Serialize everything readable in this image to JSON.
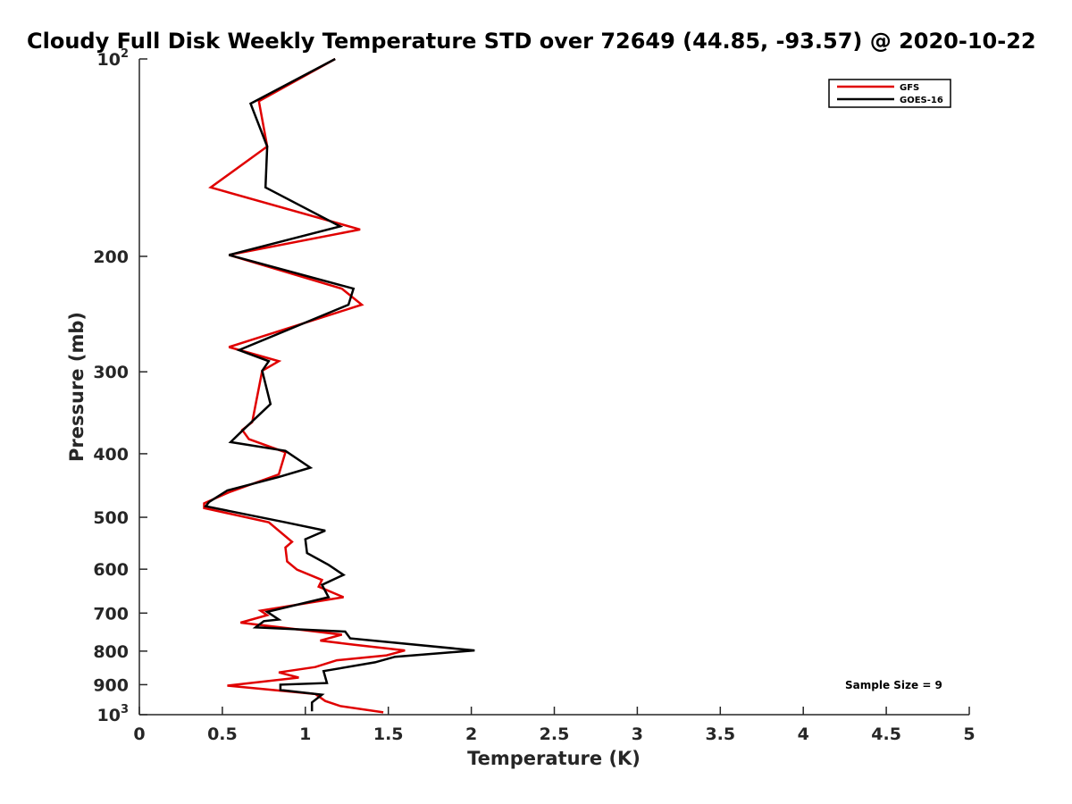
{
  "chart_data": {
    "type": "line",
    "title": "Cloudy Full Disk Weekly Temperature STD over 72649 (44.85, -93.57) @ 2020-10-22",
    "xlabel": "Temperature (K)",
    "ylabel": "Pressure (mb)",
    "xlim": [
      0,
      5
    ],
    "ylim": [
      100,
      1000
    ],
    "y_scale": "log",
    "y_reversed": true,
    "x_ticks": [
      "0",
      "0.5",
      "1",
      "1.5",
      "2",
      "2.5",
      "3",
      "3.5",
      "4",
      "4.5",
      "5"
    ],
    "y_ticks": [
      {
        "value": 100,
        "label": "10",
        "sup": "2"
      },
      {
        "value": 200,
        "label": "200",
        "sup": ""
      },
      {
        "value": 300,
        "label": "300",
        "sup": ""
      },
      {
        "value": 400,
        "label": "400",
        "sup": ""
      },
      {
        "value": 500,
        "label": "500",
        "sup": ""
      },
      {
        "value": 600,
        "label": "600",
        "sup": ""
      },
      {
        "value": 700,
        "label": "700",
        "sup": ""
      },
      {
        "value": 800,
        "label": "800",
        "sup": ""
      },
      {
        "value": 900,
        "label": "900",
        "sup": ""
      },
      {
        "value": 1000,
        "label": "10",
        "sup": "3"
      }
    ],
    "grid": false,
    "legend_position": "top-right",
    "series": [
      {
        "name": "GFS",
        "color": "#e00000",
        "points": [
          [
            1.18,
            100
          ],
          [
            0.72,
            116
          ],
          [
            0.77,
            136
          ],
          [
            0.43,
            157
          ],
          [
            1.33,
            182
          ],
          [
            0.54,
            199
          ],
          [
            1.22,
            224
          ],
          [
            1.34,
            237
          ],
          [
            0.54,
            275
          ],
          [
            0.84,
            289
          ],
          [
            0.74,
            299
          ],
          [
            0.68,
            358
          ],
          [
            0.62,
            368
          ],
          [
            0.66,
            380
          ],
          [
            0.88,
            398
          ],
          [
            0.84,
            430
          ],
          [
            0.54,
            458
          ],
          [
            0.39,
            476
          ],
          [
            0.39,
            484
          ],
          [
            0.78,
            509
          ],
          [
            0.92,
            545
          ],
          [
            0.88,
            556
          ],
          [
            0.89,
            584
          ],
          [
            0.95,
            601
          ],
          [
            1.1,
            623
          ],
          [
            1.08,
            638
          ],
          [
            1.23,
            662
          ],
          [
            0.73,
            694
          ],
          [
            0.77,
            705
          ],
          [
            0.61,
            724
          ],
          [
            1.22,
            755
          ],
          [
            1.09,
            771
          ],
          [
            1.29,
            782
          ],
          [
            1.6,
            798
          ],
          [
            1.49,
            812
          ],
          [
            1.19,
            826
          ],
          [
            1.06,
            846
          ],
          [
            0.84,
            862
          ],
          [
            0.96,
            878
          ],
          [
            0.53,
            903
          ],
          [
            1.06,
            930
          ],
          [
            1.12,
            953
          ],
          [
            1.21,
            970
          ],
          [
            1.47,
            992
          ]
        ]
      },
      {
        "name": "GOES-16",
        "color": "#000000",
        "points": [
          [
            1.18,
            100
          ],
          [
            0.67,
            117
          ],
          [
            0.77,
            136
          ],
          [
            0.76,
            157
          ],
          [
            1.21,
            180
          ],
          [
            0.54,
            199
          ],
          [
            1.29,
            224
          ],
          [
            1.26,
            237
          ],
          [
            0.6,
            278
          ],
          [
            0.78,
            289
          ],
          [
            0.74,
            299
          ],
          [
            0.79,
            336
          ],
          [
            0.62,
            369
          ],
          [
            0.55,
            384
          ],
          [
            0.88,
            396
          ],
          [
            1.03,
            420
          ],
          [
            0.84,
            434
          ],
          [
            0.53,
            455
          ],
          [
            0.42,
            474
          ],
          [
            0.4,
            481
          ],
          [
            0.88,
            509
          ],
          [
            1.12,
            524
          ],
          [
            1.0,
            540
          ],
          [
            1.01,
            567
          ],
          [
            1.14,
            591
          ],
          [
            1.23,
            612
          ],
          [
            1.1,
            634
          ],
          [
            1.14,
            662
          ],
          [
            0.77,
            697
          ],
          [
            0.84,
            716
          ],
          [
            0.75,
            720
          ],
          [
            0.7,
            736
          ],
          [
            1.24,
            747
          ],
          [
            1.27,
            765
          ],
          [
            2.02,
            798
          ],
          [
            1.54,
            816
          ],
          [
            1.42,
            832
          ],
          [
            1.11,
            858
          ],
          [
            1.13,
            895
          ],
          [
            0.85,
            900
          ],
          [
            0.85,
            917
          ],
          [
            1.1,
            932
          ],
          [
            1.04,
            958
          ],
          [
            1.04,
            988
          ]
        ]
      }
    ],
    "annotations": [
      "Sample Size = 9"
    ]
  }
}
